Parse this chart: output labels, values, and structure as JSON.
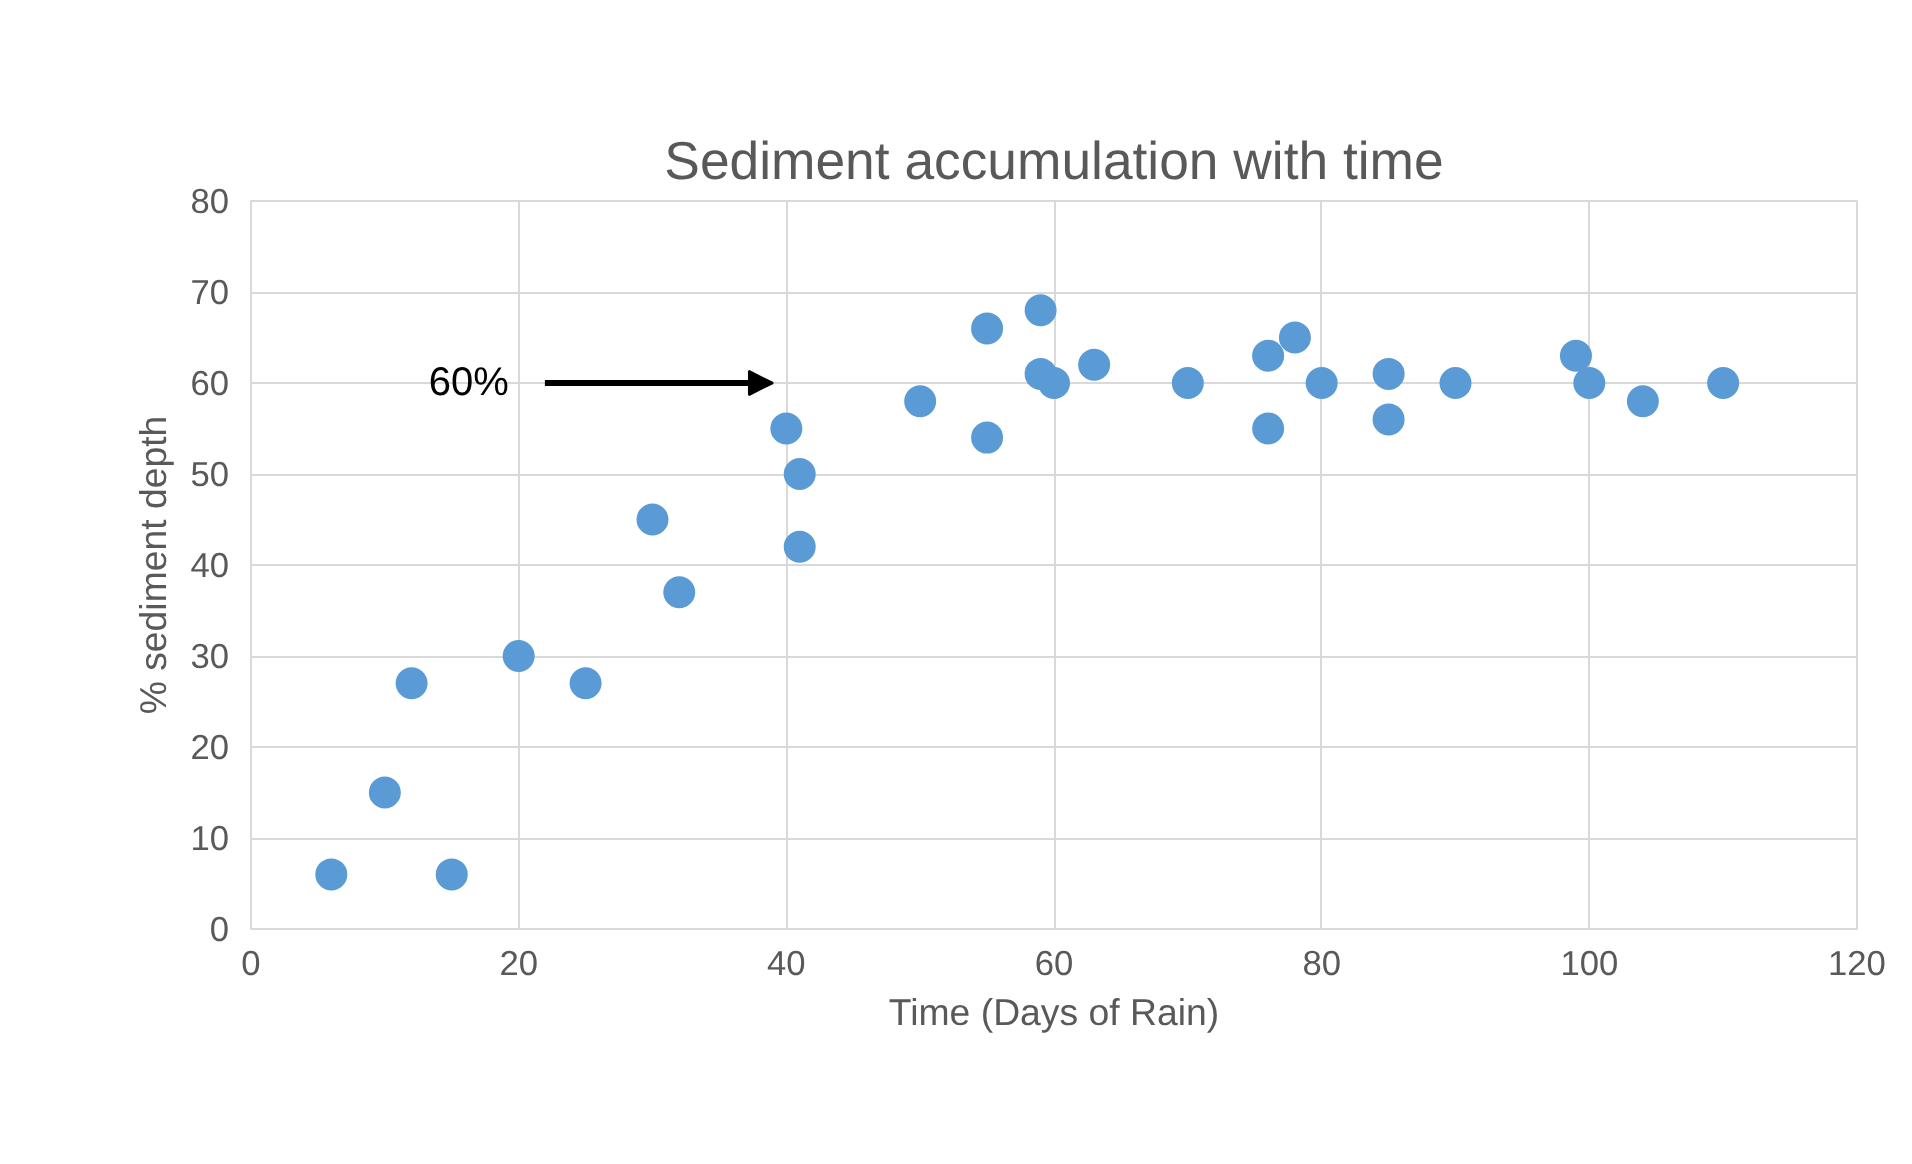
{
  "chart_data": {
    "type": "scatter",
    "title": "Sediment accumulation with time",
    "xlabel": "Time (Days of Rain)",
    "ylabel": "% sediment depth",
    "x": [
      6,
      10,
      12,
      15,
      20,
      25,
      30,
      32,
      40,
      41,
      41,
      50,
      55,
      55,
      59,
      59,
      60,
      63,
      70,
      76,
      76,
      78,
      80,
      85,
      85,
      90,
      99,
      100,
      104,
      110
    ],
    "series": [
      {
        "color": "#5b9bd5",
        "values": [
          6,
          15,
          27,
          6,
          30,
          27,
          45,
          37,
          55,
          50,
          42,
          58,
          66,
          54,
          68,
          61,
          60,
          62,
          60,
          63,
          55,
          65,
          60,
          61,
          56,
          60,
          63,
          60,
          58,
          60
        ]
      }
    ],
    "xlim": [
      0,
      120
    ],
    "xticks": [
      0,
      20,
      40,
      60,
      80,
      100,
      120
    ],
    "ylim": [
      0,
      80
    ],
    "yticks": [
      0,
      10,
      20,
      30,
      40,
      50,
      60,
      70,
      80
    ],
    "grid": true,
    "marker": "circle",
    "annotations": [
      "60%"
    ]
  }
}
